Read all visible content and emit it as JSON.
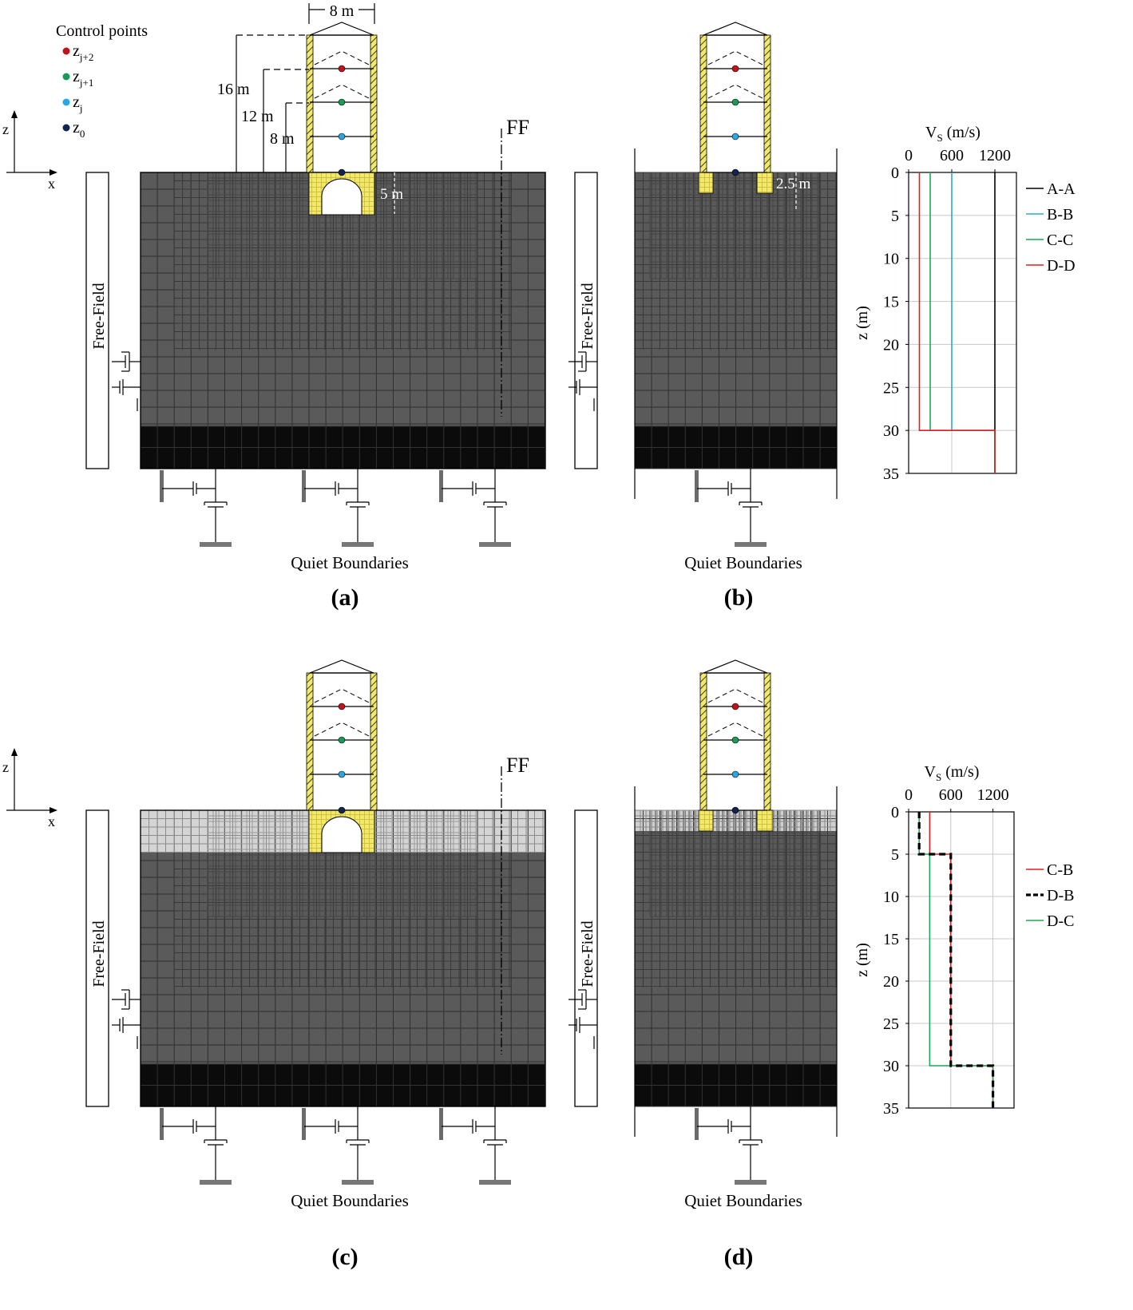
{
  "legend": {
    "title": "Control points",
    "items": [
      {
        "base": "z",
        "sub": "j+2",
        "color": "#c0141c"
      },
      {
        "base": "z",
        "sub": "j+1",
        "color": "#1a9a57"
      },
      {
        "base": "z",
        "sub": "j",
        "color": "#2aa7e0"
      },
      {
        "base": "z",
        "sub": "0",
        "color": "#12254f"
      }
    ]
  },
  "axes": {
    "z": "z",
    "x": "x"
  },
  "dimensions": {
    "width": "8 m",
    "h16": "16 m",
    "h12": "12 m",
    "h8": "8 m",
    "foundation_a": "5 m",
    "foundation_b": "2.5 m"
  },
  "labels": {
    "ff": "FF",
    "free_field": "Free-Field",
    "quiet": "Quiet Boundaries"
  },
  "panels": [
    "(a)",
    "(b)",
    "(c)",
    "(d)"
  ],
  "colors": {
    "soil": "#5a5a5a",
    "rock": "#0b0b0b",
    "soft": "#d4d4d4",
    "yellow": "#f2e96a"
  },
  "chart_data": [
    {
      "type": "line",
      "title": "",
      "xlabel": "V",
      "xlabel_sub": "S",
      "xlabel_unit": " (m/s)",
      "ylabel": "z (m)",
      "xlim": [
        0,
        1500
      ],
      "ylim": [
        0,
        35
      ],
      "xticks": [
        "0",
        "600",
        "1200"
      ],
      "xtick_values": [
        0,
        600,
        1200
      ],
      "yticks": [
        "0",
        "5",
        "10",
        "15",
        "20",
        "25",
        "30",
        "35"
      ],
      "ytick_values": [
        0,
        5,
        10,
        15,
        20,
        25,
        30,
        35
      ],
      "grid": true,
      "legend": "right",
      "series": [
        {
          "name": "A-A",
          "color": "#000000",
          "dash": false,
          "points": [
            [
              1200,
              0
            ],
            [
              1200,
              35
            ]
          ]
        },
        {
          "name": "B-B",
          "color": "#2aa7e0",
          "dash": false,
          "points": [
            [
              600,
              0
            ],
            [
              600,
              30
            ],
            [
              1200,
              30
            ],
            [
              1200,
              35
            ]
          ]
        },
        {
          "name": "C-C",
          "color": "#1aaa55",
          "dash": false,
          "points": [
            [
              300,
              0
            ],
            [
              300,
              30
            ],
            [
              1200,
              30
            ],
            [
              1200,
              35
            ]
          ]
        },
        {
          "name": "D-D",
          "color": "#e02020",
          "dash": false,
          "points": [
            [
              150,
              0
            ],
            [
              150,
              30
            ],
            [
              1200,
              30
            ],
            [
              1200,
              35
            ]
          ]
        }
      ]
    },
    {
      "type": "line",
      "title": "",
      "xlabel": "V",
      "xlabel_sub": "S",
      "xlabel_unit": " (m/s)",
      "ylabel": "z (m)",
      "xlim": [
        0,
        1500
      ],
      "ylim": [
        0,
        35
      ],
      "xticks": [
        "0",
        "600",
        "1200"
      ],
      "xtick_values": [
        0,
        600,
        1200
      ],
      "yticks": [
        "0",
        "5",
        "10",
        "15",
        "20",
        "25",
        "30",
        "35"
      ],
      "ytick_values": [
        0,
        5,
        10,
        15,
        20,
        25,
        30,
        35
      ],
      "grid": true,
      "legend": "right",
      "series": [
        {
          "name": "C-B",
          "color": "#e02020",
          "dash": false,
          "points": [
            [
              300,
              0
            ],
            [
              300,
              5
            ],
            [
              600,
              5
            ],
            [
              600,
              30
            ],
            [
              1200,
              30
            ],
            [
              1200,
              35
            ]
          ]
        },
        {
          "name": "D-B",
          "color": "#000000",
          "dash": true,
          "points": [
            [
              150,
              0
            ],
            [
              150,
              5
            ],
            [
              600,
              5
            ],
            [
              600,
              30
            ],
            [
              1200,
              30
            ],
            [
              1200,
              35
            ]
          ]
        },
        {
          "name": "D-C",
          "color": "#1aaa55",
          "dash": false,
          "points": [
            [
              150,
              0
            ],
            [
              150,
              5
            ],
            [
              300,
              5
            ],
            [
              300,
              30
            ],
            [
              1200,
              30
            ],
            [
              1200,
              35
            ]
          ]
        }
      ]
    }
  ]
}
